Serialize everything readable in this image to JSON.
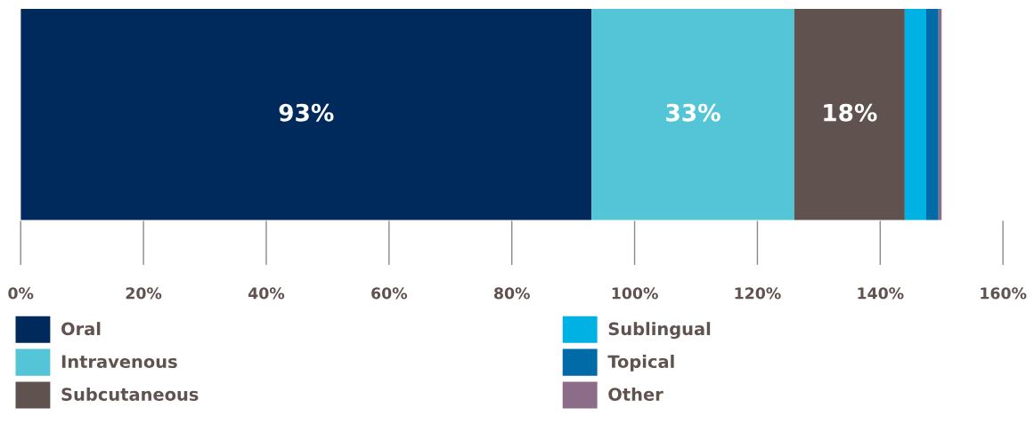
{
  "chart_data": {
    "type": "bar",
    "orientation": "horizontal",
    "stacked": true,
    "categories": [
      null
    ],
    "series": [
      {
        "name": "Oral",
        "color": "#002a5c",
        "values": [
          93
        ],
        "value_labels": [
          "93%"
        ]
      },
      {
        "name": "Intravenous",
        "color": "#54c5d6",
        "values": [
          33
        ],
        "value_labels": [
          "33%"
        ]
      },
      {
        "name": "Subcutaneous",
        "color": "#5f524f",
        "values": [
          18
        ],
        "value_labels": [
          "18%"
        ]
      },
      {
        "name": "Sublingual",
        "color": "#00b2e3",
        "values": [
          3.5
        ],
        "value_labels": [
          null
        ]
      },
      {
        "name": "Topical",
        "color": "#006ba6",
        "values": [
          2
        ],
        "value_labels": [
          null
        ]
      },
      {
        "name": "Other",
        "color": "#8b6d8a",
        "values": [
          0.5
        ],
        "value_labels": [
          null
        ]
      }
    ],
    "xlim": [
      0,
      160
    ],
    "xticks": [
      {
        "value": 0,
        "label": "0%"
      },
      {
        "value": 20,
        "label": "20%"
      },
      {
        "value": 40,
        "label": "40%"
      },
      {
        "value": 60,
        "label": "60%"
      },
      {
        "value": 80,
        "label": "80%"
      },
      {
        "value": 100,
        "label": "100%"
      },
      {
        "value": 120,
        "label": "120%"
      },
      {
        "value": 140,
        "label": "140%"
      },
      {
        "value": 160,
        "label": "160%"
      }
    ],
    "grid": false,
    "legend": "bottom"
  }
}
